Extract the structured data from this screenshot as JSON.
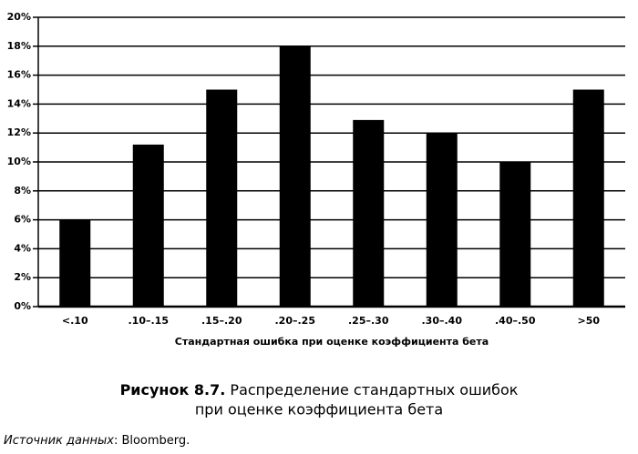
{
  "chart_data": {
    "type": "bar",
    "categories": [
      "<.10",
      ".10–.15",
      ".15–.20",
      ".20–.25",
      ".25–.30",
      ".30–.40",
      ".40–.50",
      ">50"
    ],
    "values": [
      6,
      11.2,
      15,
      18,
      12.9,
      12,
      10,
      15
    ],
    "color": "#000000",
    "x_label": "Стандартная ошибка при оценке коэффициента бета",
    "ylim": [
      0,
      20
    ],
    "yticks": [
      {
        "value": 0,
        "label": "0%"
      },
      {
        "value": 2,
        "label": "2%"
      },
      {
        "value": 4,
        "label": "4%"
      },
      {
        "value": 6,
        "label": "6%"
      },
      {
        "value": 8,
        "label": "8%"
      },
      {
        "value": 10,
        "label": "10%"
      },
      {
        "value": 12,
        "label": "12%"
      },
      {
        "value": 14,
        "label": "14%"
      },
      {
        "value": 16,
        "label": "16%"
      },
      {
        "value": 18,
        "label": "18%"
      },
      {
        "value": 20,
        "label": "20%"
      }
    ],
    "grid": true,
    "caption": {
      "label": "Рисунок 8.7.",
      "lines": [
        "Распределение стандартных ошибок",
        "при оценке коэффициента бета"
      ]
    },
    "source": {
      "label": "Источник данных",
      "text": ": Bloomberg."
    }
  }
}
